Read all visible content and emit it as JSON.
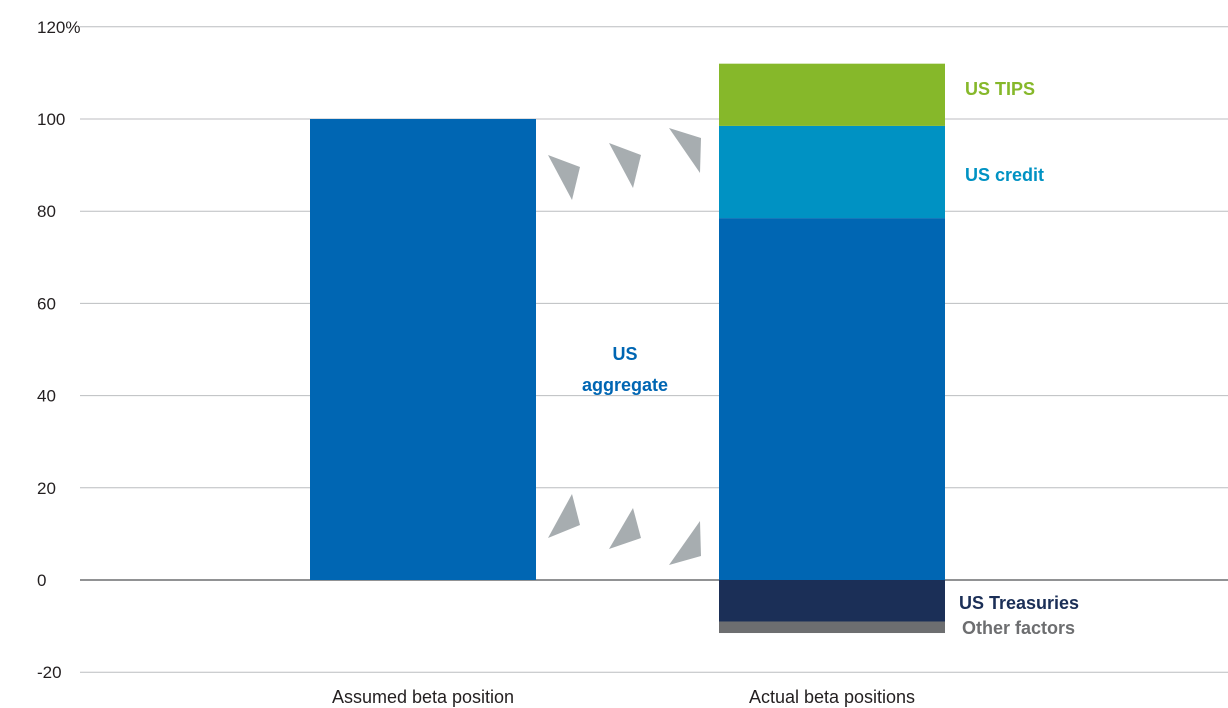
{
  "chart_data": {
    "type": "bar",
    "stacked": true,
    "categories": [
      "Assumed beta position",
      "Actual beta positions"
    ],
    "ylim": [
      -20,
      120
    ],
    "yticks": [
      -20,
      0,
      20,
      40,
      60,
      80,
      100,
      120
    ],
    "ytick_labels": [
      "-20",
      "0",
      "20",
      "40",
      "60",
      "80",
      "100",
      "120%"
    ],
    "grid": true,
    "series": [
      {
        "name": "US aggregate",
        "values": [
          100,
          78.5
        ],
        "color": "#0066b3"
      },
      {
        "name": "US credit",
        "values": [
          0,
          20
        ],
        "color": "#0092c3"
      },
      {
        "name": "US TIPS",
        "values": [
          0,
          13.5
        ],
        "color": "#86b82a"
      },
      {
        "name": "US Treasuries",
        "values": [
          0,
          -9
        ],
        "color": "#1b2f57"
      },
      {
        "name": "Other factors",
        "values": [
          0,
          -2.5
        ],
        "color": "#6d6e70"
      }
    ],
    "labels": {
      "us_aggregate": [
        "US",
        "aggregate"
      ],
      "us_credit": "US credit",
      "us_tips": "US TIPS",
      "us_treasuries": "US Treasuries",
      "other_factors": "Other factors"
    },
    "label_colors": {
      "us_aggregate": "#0066b3",
      "us_credit": "#0092c3",
      "us_tips": "#86b82a",
      "us_treasuries": "#1b2f57",
      "other_factors": "#6d6e70"
    },
    "arrow_color": "#a7adb0",
    "grid_color": "#bcbec0",
    "zero_line_color": "#6d6e70"
  }
}
